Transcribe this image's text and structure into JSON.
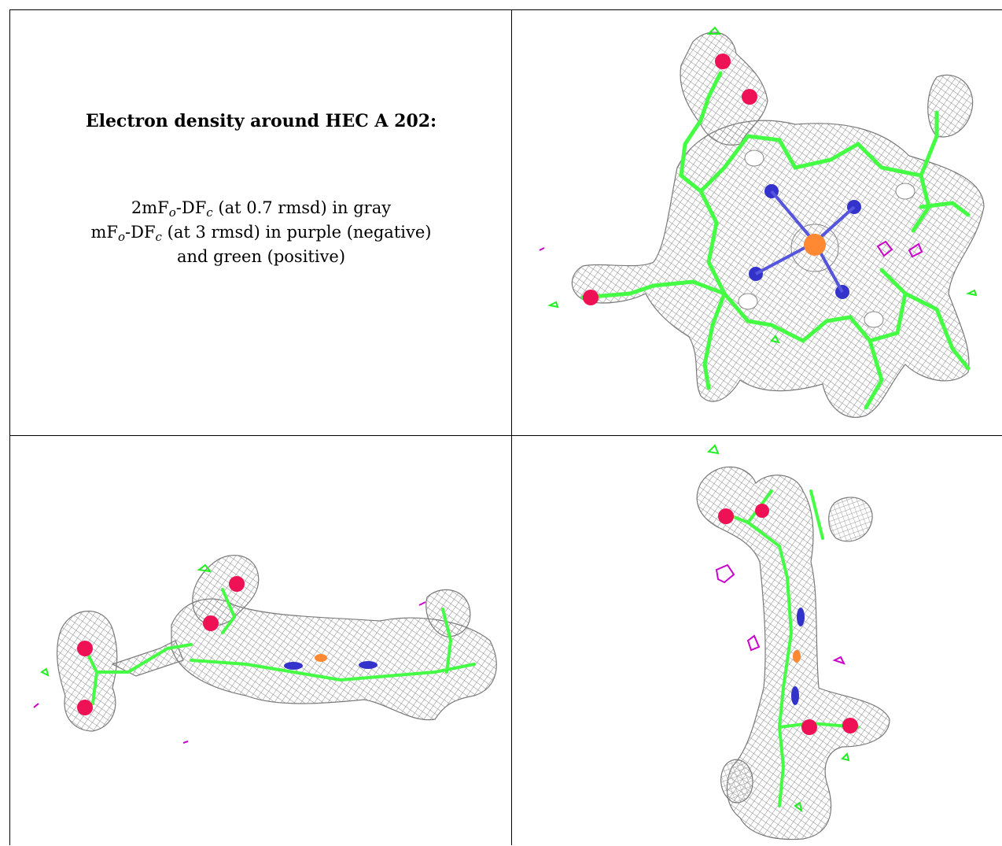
{
  "caption": {
    "title": "Electron density around HEC A 202:",
    "line1_prefix": "2mF",
    "line1_sub1": "o",
    "line1_mid": "-DF",
    "line1_sub2": "c",
    "line1_suffix": " (at 0.7 rmsd) in gray",
    "line2_prefix": "mF",
    "line2_sub1": "o",
    "line2_mid": "-DF",
    "line2_sub2": "c",
    "line2_suffix": " (at 3 rmsd) in purple (negative)",
    "line3": "and green (positive)"
  },
  "colors": {
    "mesh_gray": "#8a8a8a",
    "positive_green": "#22ee22",
    "negative_purple": "#cc00cc",
    "carbon_green": "#44ff44",
    "nitrogen_blue": "#3333cc",
    "oxygen_red": "#ee1155",
    "iron_orange": "#ff8833",
    "border": "#000000"
  },
  "views": [
    {
      "name": "top-view"
    },
    {
      "name": "side-view"
    },
    {
      "name": "end-view"
    }
  ]
}
